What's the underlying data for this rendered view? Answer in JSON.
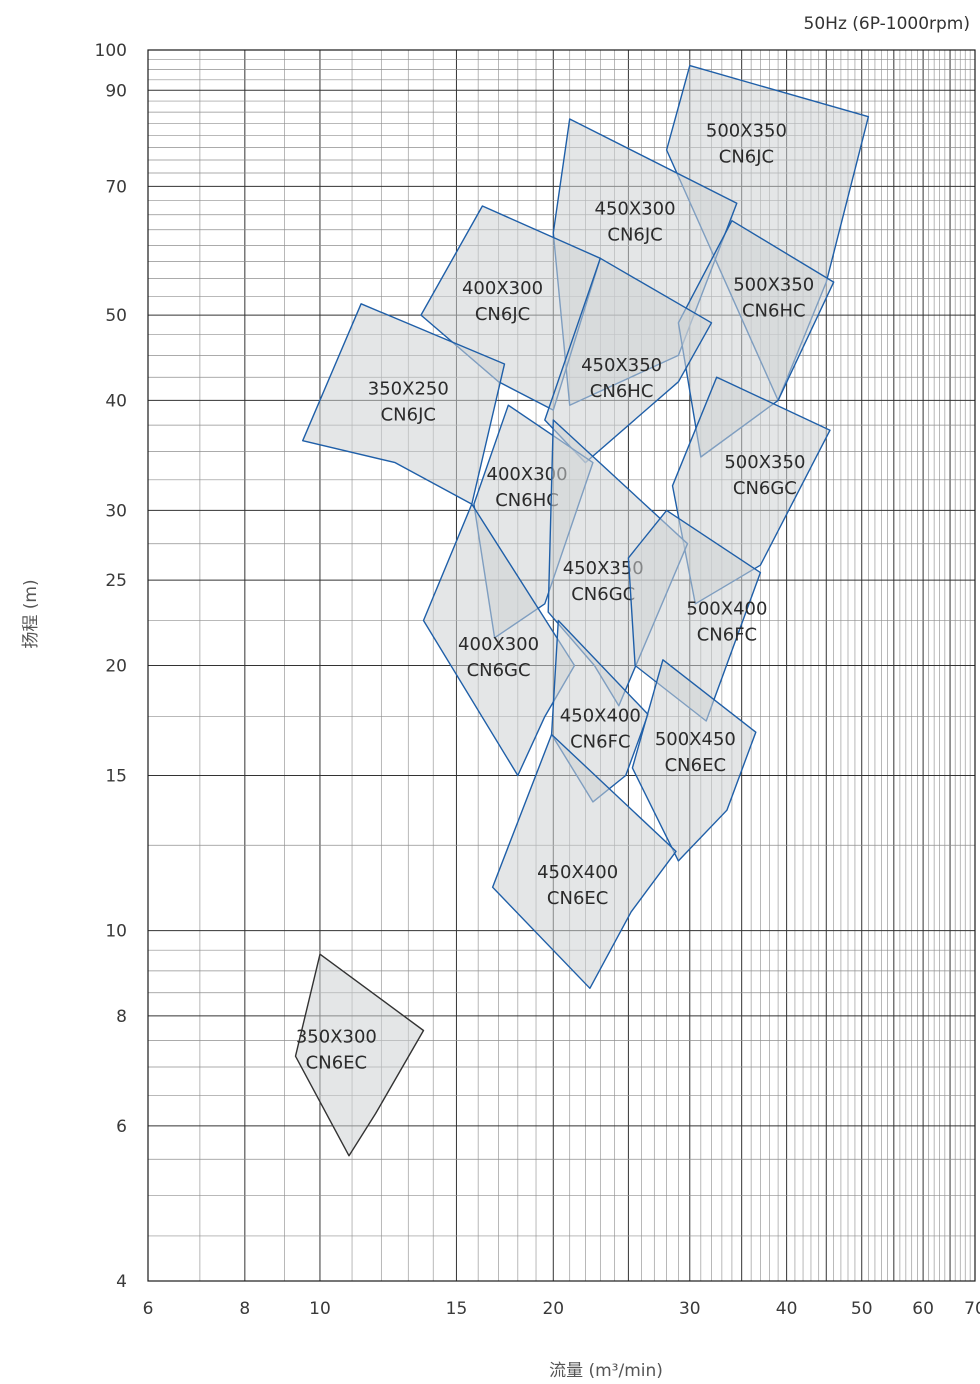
{
  "header": {
    "frequency_label": "50Hz (6P-1000rpm)"
  },
  "chart_data": {
    "type": "area",
    "title": "",
    "xlabel": "流量 (m³/min)",
    "ylabel": "扬程 (m)",
    "x_scale": "log",
    "y_scale": "log",
    "xlim": [
      6,
      70
    ],
    "ylim": [
      4,
      100
    ],
    "x_ticks": [
      6,
      8,
      10,
      15,
      20,
      30,
      40,
      50,
      60,
      70
    ],
    "y_ticks": [
      4,
      6,
      8,
      10,
      15,
      20,
      25,
      30,
      40,
      50,
      70,
      90,
      100
    ],
    "grid": true,
    "regions": [
      {
        "line1": "500X350",
        "line2": "CN6JC",
        "color": "#1f5fa8",
        "label_at": [
          35.5,
          78.5
        ],
        "polygon": [
          [
            30,
            96
          ],
          [
            51,
            84
          ],
          [
            45,
            54.5
          ],
          [
            39,
            40
          ],
          [
            28,
            77
          ]
        ]
      },
      {
        "line1": "450X300",
        "line2": "CN6JC",
        "color": "#1f5fa8",
        "label_at": [
          25.5,
          64
        ],
        "polygon": [
          [
            21,
            83.5
          ],
          [
            34.5,
            67
          ],
          [
            29,
            45
          ],
          [
            21,
            39.5
          ],
          [
            20,
            62
          ]
        ]
      },
      {
        "line1": "500X350",
        "line2": "CN6HC",
        "color": "#1f5fa8",
        "label_at": [
          38.5,
          52.5
        ],
        "polygon": [
          [
            34,
            64
          ],
          [
            46,
            54.5
          ],
          [
            39,
            40
          ],
          [
            31,
            34.5
          ],
          [
            29,
            49
          ]
        ]
      },
      {
        "line1": "400X300",
        "line2": "CN6JC",
        "color": "#1f5fa8",
        "label_at": [
          17.2,
          52
        ],
        "polygon": [
          [
            16.2,
            66.5
          ],
          [
            23,
            58
          ],
          [
            20,
            39
          ],
          [
            17,
            42
          ],
          [
            13.5,
            50
          ]
        ]
      },
      {
        "line1": "450X350",
        "line2": "CN6HC",
        "color": "#1f5fa8",
        "label_at": [
          24.5,
          42.5
        ],
        "polygon": [
          [
            23,
            58
          ],
          [
            32,
            49
          ],
          [
            29,
            42
          ],
          [
            22,
            34
          ],
          [
            19.5,
            38
          ]
        ]
      },
      {
        "line1": "350X250",
        "line2": "CN6JC",
        "color": "#1f5fa8",
        "label_at": [
          13,
          40
        ],
        "polygon": [
          [
            11.3,
            51.5
          ],
          [
            17.3,
            44
          ],
          [
            15.7,
            30.5
          ],
          [
            12.5,
            34
          ],
          [
            9.5,
            36
          ]
        ]
      },
      {
        "line1": "500X350",
        "line2": "CN6GC",
        "color": "#1f5fa8",
        "label_at": [
          37.5,
          33
        ],
        "polygon": [
          [
            32.5,
            42.5
          ],
          [
            45.5,
            37
          ],
          [
            37,
            26
          ],
          [
            30.5,
            23.5
          ],
          [
            28.5,
            32
          ]
        ]
      },
      {
        "line1": "400X300",
        "line2": "CN6HC",
        "color": "#1f5fa8",
        "label_at": [
          18.5,
          32
        ],
        "polygon": [
          [
            17.5,
            39.5
          ],
          [
            22.5,
            34
          ],
          [
            19.5,
            23.5
          ],
          [
            16.8,
            21.5
          ],
          [
            15.8,
            30.5
          ]
        ]
      },
      {
        "line1": "450X350",
        "line2": "CN6GC",
        "color": "#1f5fa8",
        "label_at": [
          23.2,
          25
        ],
        "polygon": [
          [
            20,
            38
          ],
          [
            29.8,
            27.5
          ],
          [
            24.3,
            18
          ],
          [
            22.6,
            20
          ],
          [
            19.7,
            23
          ]
        ]
      },
      {
        "line1": "500X400",
        "line2": "CN6FC",
        "color": "#1f5fa8",
        "label_at": [
          33.5,
          22.5
        ],
        "polygon": [
          [
            28,
            30
          ],
          [
            37,
            25.5
          ],
          [
            31.5,
            17.3
          ],
          [
            25.5,
            20
          ],
          [
            25,
            26.5
          ]
        ]
      },
      {
        "line1": "400X300",
        "line2": "CN6GC",
        "color": "#1f5fa8",
        "label_at": [
          17,
          20.5
        ],
        "polygon": [
          [
            15.7,
            30.5
          ],
          [
            21.3,
            20
          ],
          [
            19.5,
            17.5
          ],
          [
            18,
            15
          ],
          [
            13.6,
            22.5
          ]
        ]
      },
      {
        "line1": "450X400",
        "line2": "CN6FC",
        "color": "#1f5fa8",
        "label_at": [
          23,
          17
        ],
        "polygon": [
          [
            20.3,
            22.5
          ],
          [
            26.5,
            17.6
          ],
          [
            24.8,
            15
          ],
          [
            22.5,
            14
          ],
          [
            19.9,
            16.7
          ]
        ]
      },
      {
        "line1": "500X450",
        "line2": "CN6EC",
        "color": "#1f5fa8",
        "label_at": [
          30.5,
          16
        ],
        "polygon": [
          [
            27.7,
            20.3
          ],
          [
            36.5,
            16.8
          ],
          [
            33.5,
            13.7
          ],
          [
            29,
            12
          ],
          [
            25.3,
            15.3
          ]
        ]
      },
      {
        "line1": "450X400",
        "line2": "CN6EC",
        "color": "#1f5fa8",
        "label_at": [
          21.5,
          11.3
        ],
        "polygon": [
          [
            19.9,
            16.7
          ],
          [
            28.8,
            12.3
          ],
          [
            25.2,
            10.5
          ],
          [
            22.3,
            8.6
          ],
          [
            16.7,
            11.2
          ]
        ]
      },
      {
        "line1": "350X300",
        "line2": "CN6EC",
        "color": "#333333",
        "label_at": [
          10.5,
          7.35
        ],
        "polygon": [
          [
            10,
            9.4
          ],
          [
            13.6,
            7.7
          ],
          [
            11.8,
            6.2
          ],
          [
            10.9,
            5.55
          ],
          [
            9.3,
            7.2
          ]
        ]
      }
    ]
  }
}
